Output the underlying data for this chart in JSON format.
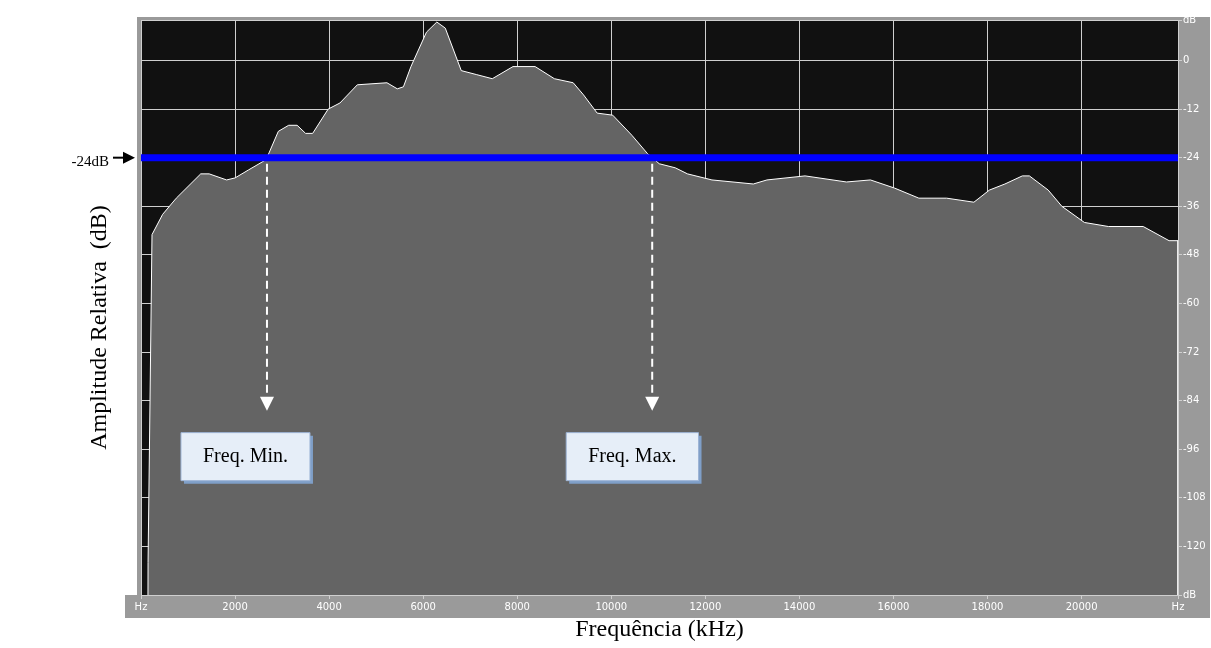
{
  "chart_data": {
    "type": "area",
    "xlabel": "Frequência (kHz)",
    "ylabel": "Amplitude Relativa  (dB)",
    "x": [
      148,
      150,
      234,
      460,
      750,
      1270,
      1450,
      1820,
      2000,
      2290,
      2660,
      2920,
      3140,
      3320,
      3500,
      3650,
      3980,
      4230,
      4600,
      5230,
      5450,
      5580,
      5740,
      6070,
      6290,
      6470,
      6810,
      7140,
      7470,
      7910,
      8380,
      8790,
      9190,
      9410,
      9700,
      10030,
      10440,
      10770,
      11020,
      11360,
      11620,
      12140,
      13020,
      13310,
      14120,
      15000,
      15510,
      16020,
      16540,
      17130,
      17710,
      18040,
      18370,
      18740,
      18890,
      19290,
      19580,
      20060,
      20570,
      21310,
      21860,
      22050,
      22050
    ],
    "series": [
      {
        "color": "#646464",
        "values": [
          -132,
          -124,
          -43,
          -38,
          -34,
          -28,
          -28,
          -29.5,
          -29,
          -27,
          -24.5,
          -17.5,
          -16,
          -16,
          -18,
          -18,
          -12,
          -10.5,
          -6,
          -5.5,
          -7,
          -6.5,
          -1.5,
          7,
          9.5,
          8,
          -2.5,
          -3.5,
          -4.5,
          -1.5,
          -1.5,
          -4.5,
          -5.5,
          -8.5,
          -13,
          -13.5,
          -18.5,
          -23,
          -25.5,
          -26.5,
          -28,
          -29.5,
          -30.5,
          -29.5,
          -28.5,
          -30,
          -29.5,
          -31.5,
          -34,
          -34,
          -35,
          -32,
          -30.5,
          -28.5,
          -28.5,
          -32,
          -36,
          -40,
          -41,
          -41,
          -44.5,
          -44.5,
          -132
        ]
      }
    ],
    "xlim": [
      0,
      22050
    ],
    "ylim": [
      -132,
      10
    ],
    "xticks": [
      {
        "value": 0,
        "label": "Hz"
      },
      2000,
      4000,
      6000,
      8000,
      10000,
      12000,
      14000,
      16000,
      18000,
      20000,
      {
        "value": 22050,
        "label": "Hz"
      }
    ],
    "yticks": [
      {
        "value": 10,
        "label": "dB"
      },
      0,
      -12,
      -24,
      -36,
      -48,
      -60,
      -72,
      -84,
      -96,
      -108,
      -120,
      {
        "value": -132,
        "label": "dB"
      }
    ],
    "grid": true,
    "ref_lines": [
      {
        "axis": "y",
        "value": -24,
        "label": "-24dB",
        "color": "#0000ff"
      }
    ],
    "annotations": [
      "Freq. Min.",
      "Freq. Max."
    ]
  }
}
